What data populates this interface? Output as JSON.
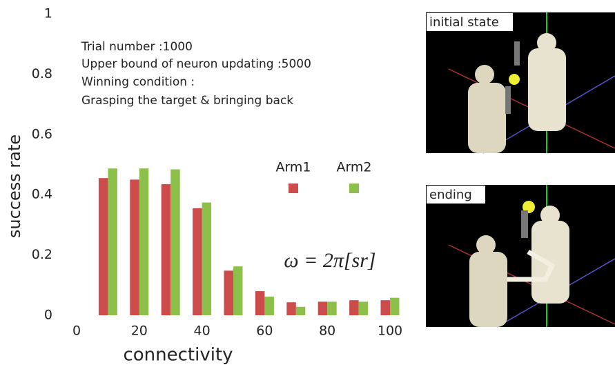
{
  "chart_data": {
    "type": "bar",
    "x_label": "connectivity",
    "y_label": "success rate",
    "x": [
      10,
      20,
      30,
      40,
      50,
      60,
      70,
      80,
      90,
      100
    ],
    "series": [
      {
        "name": "Arm1",
        "color": "#cc4b4b",
        "values": [
          0.455,
          0.45,
          0.435,
          0.355,
          0.148,
          0.08,
          0.043,
          0.045,
          0.05,
          0.05
        ]
      },
      {
        "name": "Arm2",
        "color": "#8cc04b",
        "values": [
          0.487,
          0.487,
          0.484,
          0.374,
          0.162,
          0.062,
          0.028,
          0.045,
          0.045,
          0.058
        ]
      }
    ],
    "xlim": [
      0,
      100
    ],
    "xticks": [
      0,
      20,
      40,
      60,
      80,
      100
    ],
    "ylim": [
      0,
      1
    ],
    "yticks": [
      0,
      0.2,
      0.4,
      0.6,
      0.8,
      1
    ],
    "grid": false,
    "annotations": [
      "Trial number :1000",
      "Upper bound of neuron updating :5000",
      "Winning condition :",
      "Grasping the target & bringing back"
    ],
    "formula": "ω = 2π[sr]"
  },
  "panels": [
    {
      "label": "initial state"
    },
    {
      "label": "ending"
    }
  ]
}
